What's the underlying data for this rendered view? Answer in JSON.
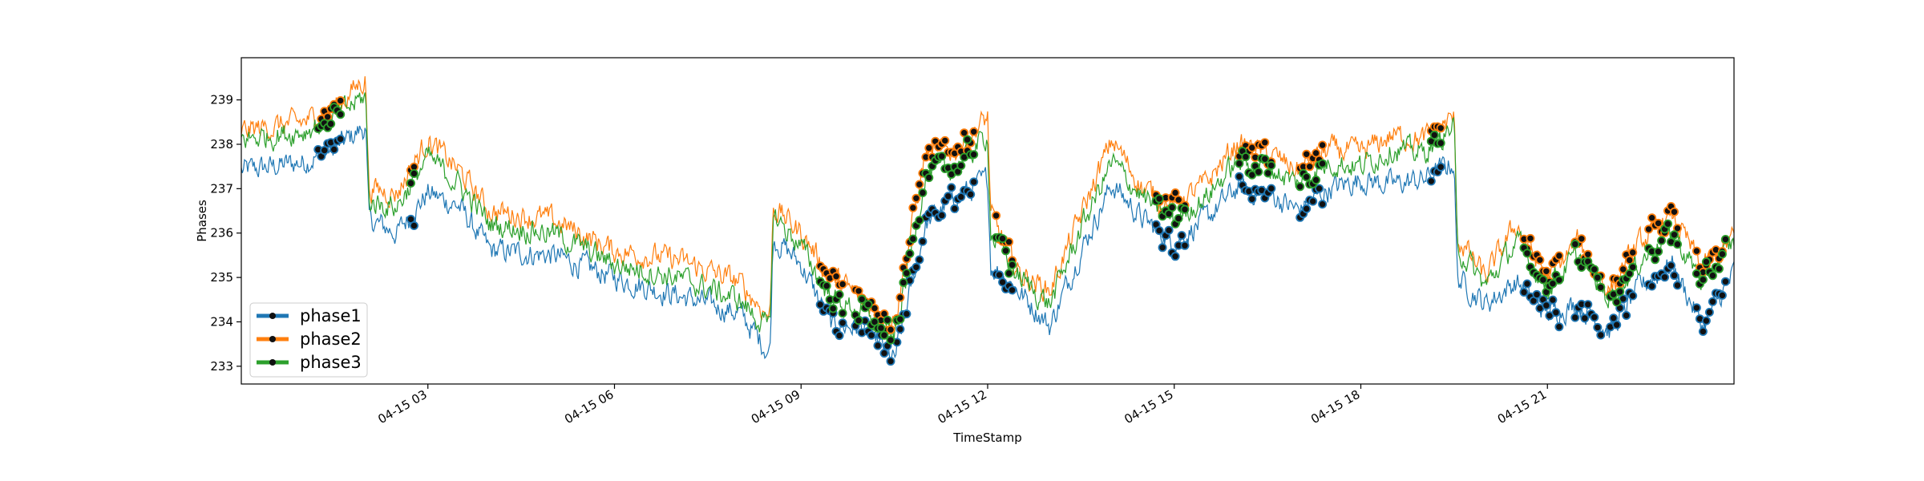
{
  "chart_data": {
    "type": "line",
    "title": "",
    "xlabel": "TimeStamp",
    "ylabel": "Phases",
    "x_range": [
      "04-15 00:00",
      "04-15 24:00"
    ],
    "x_ticks": [
      {
        "hour": 3,
        "label": "04-15 03"
      },
      {
        "hour": 6,
        "label": "04-15 06"
      },
      {
        "hour": 9,
        "label": "04-15 09"
      },
      {
        "hour": 12,
        "label": "04-15 12"
      },
      {
        "hour": 15,
        "label": "04-15 15"
      },
      {
        "hour": 18,
        "label": "04-15 18"
      },
      {
        "hour": 21,
        "label": "04-15 21"
      }
    ],
    "ylim": [
      232.6,
      239.95
    ],
    "y_ticks": [
      233,
      234,
      235,
      236,
      237,
      238,
      239
    ],
    "grid": false,
    "legend": "bottom-left",
    "marker_note": "dot markers highlight anomalous segments",
    "series": [
      {
        "name": "phase1",
        "color": "#1f77b4",
        "x_hours": [
          0.0,
          0.5,
          1.0,
          1.5,
          2.0,
          2.05,
          2.5,
          3.0,
          3.5,
          4.0,
          5.0,
          6.0,
          7.0,
          8.0,
          8.5,
          8.55,
          9.0,
          9.5,
          10.0,
          10.5,
          11.0,
          11.5,
          12.0,
          12.05,
          12.5,
          13.0,
          13.5,
          14.0,
          14.5,
          15.0,
          15.5,
          16.0,
          16.5,
          17.0,
          17.5,
          18.0,
          18.5,
          19.0,
          19.5,
          19.55,
          20.0,
          20.5,
          21.0,
          21.5,
          22.0,
          22.5,
          23.0,
          23.5,
          24.0
        ],
        "values": [
          237.4,
          237.5,
          237.6,
          237.9,
          238.4,
          236.3,
          236.0,
          236.9,
          236.6,
          235.6,
          235.5,
          235.0,
          234.6,
          234.2,
          233.3,
          235.9,
          235.3,
          233.9,
          233.9,
          233.1,
          236.2,
          236.8,
          237.2,
          235.3,
          234.7,
          233.9,
          235.6,
          237.1,
          236.3,
          235.8,
          236.3,
          237.0,
          236.9,
          236.5,
          237.0,
          237.2,
          237.1,
          237.2,
          237.6,
          235.0,
          234.4,
          234.9,
          234.2,
          234.4,
          233.8,
          234.8,
          235.3,
          233.9,
          235.1
        ],
        "anomaly_ranges": [
          [
            1.2,
            1.6
          ],
          [
            2.7,
            2.8
          ],
          [
            9.3,
            9.7
          ],
          [
            9.85,
            10.45
          ],
          [
            10.5,
            11.8
          ],
          [
            12.1,
            12.4
          ],
          [
            14.7,
            15.2
          ],
          [
            16.0,
            16.6
          ],
          [
            17.0,
            17.4
          ],
          [
            19.1,
            19.3
          ],
          [
            20.6,
            21.2
          ],
          [
            21.4,
            21.9
          ],
          [
            22.0,
            22.4
          ],
          [
            22.6,
            23.1
          ],
          [
            23.4,
            23.9
          ]
        ]
      },
      {
        "name": "phase2",
        "color": "#ff7f0e",
        "x_hours": [
          0.0,
          0.5,
          1.0,
          1.5,
          2.0,
          2.05,
          2.5,
          3.0,
          3.5,
          4.0,
          5.0,
          6.0,
          7.0,
          8.0,
          8.5,
          8.55,
          9.0,
          9.5,
          10.0,
          10.5,
          11.0,
          11.5,
          12.0,
          12.05,
          12.5,
          13.0,
          13.5,
          14.0,
          14.5,
          15.0,
          15.5,
          16.0,
          16.5,
          17.0,
          17.5,
          18.0,
          18.5,
          19.0,
          19.5,
          19.55,
          20.0,
          20.5,
          21.0,
          21.5,
          22.0,
          22.5,
          23.0,
          23.5,
          24.0
        ],
        "values": [
          238.3,
          238.4,
          238.5,
          238.8,
          239.5,
          237.0,
          236.9,
          238.1,
          237.4,
          236.5,
          236.3,
          235.6,
          235.4,
          234.9,
          234.1,
          236.6,
          236.0,
          235.0,
          234.5,
          234.0,
          237.8,
          237.9,
          238.6,
          236.4,
          235.1,
          234.7,
          236.4,
          238.1,
          237.0,
          236.6,
          237.1,
          238.0,
          237.8,
          237.4,
          237.9,
          237.8,
          238.2,
          238.1,
          238.6,
          235.9,
          235.0,
          236.2,
          235.0,
          235.8,
          234.7,
          235.8,
          236.4,
          235.2,
          235.9
        ],
        "anomaly_ranges": [
          [
            1.2,
            1.6
          ],
          [
            2.7,
            2.8
          ],
          [
            9.3,
            9.7
          ],
          [
            9.85,
            10.45
          ],
          [
            10.5,
            11.8
          ],
          [
            12.1,
            12.4
          ],
          [
            14.7,
            15.2
          ],
          [
            16.0,
            16.6
          ],
          [
            17.0,
            17.4
          ],
          [
            19.1,
            19.3
          ],
          [
            20.6,
            21.2
          ],
          [
            21.4,
            21.9
          ],
          [
            22.0,
            22.4
          ],
          [
            22.6,
            23.1
          ],
          [
            23.4,
            23.9
          ]
        ]
      },
      {
        "name": "phase3",
        "color": "#2ca02c",
        "x_hours": [
          0.0,
          0.5,
          1.0,
          1.5,
          2.0,
          2.05,
          2.5,
          3.0,
          3.5,
          4.0,
          5.0,
          6.0,
          7.0,
          8.0,
          8.5,
          8.55,
          9.0,
          9.5,
          10.0,
          10.5,
          11.0,
          11.5,
          12.0,
          12.05,
          12.5,
          13.0,
          13.5,
          14.0,
          14.5,
          15.0,
          15.5,
          16.0,
          16.5,
          17.0,
          17.5,
          18.0,
          18.5,
          19.0,
          19.5,
          19.55,
          20.0,
          20.5,
          21.0,
          21.5,
          22.0,
          22.5,
          23.0,
          23.5,
          24.0
        ],
        "values": [
          238.1,
          238.2,
          238.3,
          238.6,
          239.1,
          236.7,
          236.6,
          237.7,
          237.1,
          236.2,
          236.0,
          235.3,
          235.0,
          234.5,
          233.8,
          236.4,
          235.7,
          234.5,
          234.2,
          233.6,
          237.3,
          237.5,
          238.2,
          236.0,
          235.0,
          234.4,
          236.1,
          237.6,
          236.8,
          236.3,
          236.8,
          237.6,
          237.5,
          237.1,
          237.6,
          237.5,
          237.9,
          237.8,
          238.4,
          235.7,
          234.8,
          235.8,
          234.8,
          235.5,
          234.5,
          235.4,
          236.0,
          234.9,
          235.8
        ],
        "anomaly_ranges": [
          [
            1.2,
            1.6
          ],
          [
            2.7,
            2.8
          ],
          [
            9.3,
            9.7
          ],
          [
            9.85,
            10.45
          ],
          [
            10.5,
            11.8
          ],
          [
            12.1,
            12.4
          ],
          [
            14.7,
            15.2
          ],
          [
            16.0,
            16.6
          ],
          [
            17.0,
            17.4
          ],
          [
            19.1,
            19.3
          ],
          [
            20.6,
            21.2
          ],
          [
            21.4,
            21.9
          ],
          [
            22.0,
            22.4
          ],
          [
            22.6,
            23.1
          ],
          [
            23.4,
            23.9
          ]
        ]
      }
    ]
  }
}
